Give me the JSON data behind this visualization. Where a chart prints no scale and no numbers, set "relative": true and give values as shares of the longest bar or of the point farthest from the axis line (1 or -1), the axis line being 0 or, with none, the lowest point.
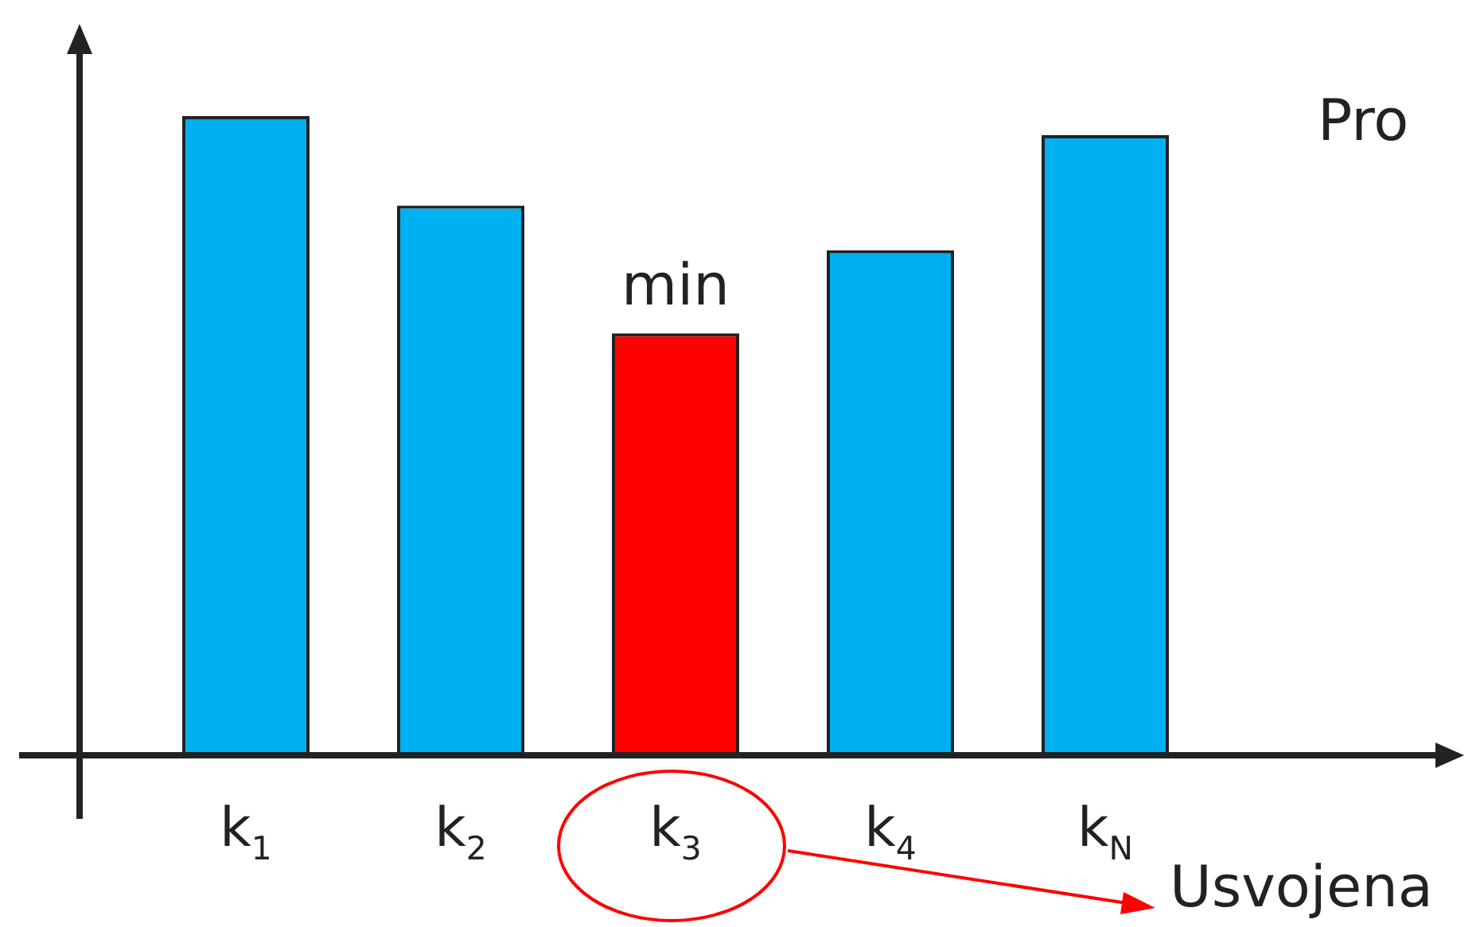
{
  "chart_data": {
    "type": "bar",
    "relative": true,
    "categories": [
      "k$_{1}$",
      "k$_{2}$",
      "k$_{3}$",
      "k$_{4}$",
      "k$_{N}$"
    ],
    "values": [
      1,
      0.86,
      0.66,
      0.79,
      0.97
    ],
    "colors": [
      "#00b0f0",
      "#00b0f0",
      "#ff0000",
      "#00b0f0",
      "#00b0f0"
    ],
    "annotations": [
      {
        "text": "min",
        "x": "k$_{3}$",
        "y": 0.66
      },
      "Pro",
      "Usvojena"
    ],
    "legend": false
  }
}
